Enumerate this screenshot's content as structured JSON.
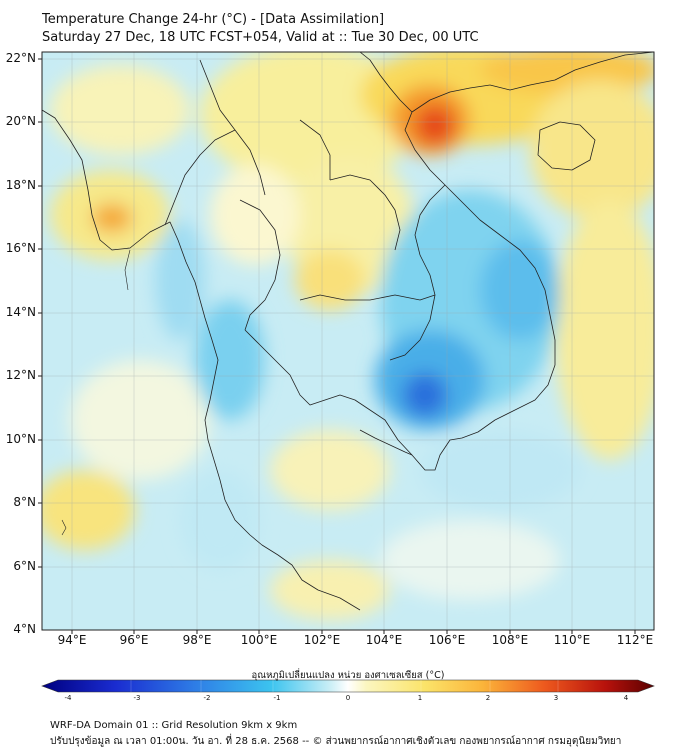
{
  "title": {
    "line1": "Temperature Change 24-hr (°C) - [Data Assimilation]",
    "line2": "Saturday 27 Dec, 18 UTC FCST+054, Valid at :: Tue 30 Dec, 00 UTC"
  },
  "map": {
    "lat_labels": [
      "22°N",
      "20°N",
      "18°N",
      "16°N",
      "14°N",
      "12°N",
      "10°N",
      "8°N",
      "6°N",
      "4°N"
    ],
    "lon_labels": [
      "94°E",
      "96°E",
      "98°E",
      "100°E",
      "102°E",
      "104°E",
      "106°E",
      "108°E",
      "110°E",
      "112°E"
    ],
    "lat_range": [
      4,
      22.2
    ],
    "lon_range": [
      93.1,
      112.9
    ],
    "grid": true
  },
  "colorbar": {
    "title": "อุณหภูมิเปลี่ยนแปลง หน่วย องศาเซลเซียส (°C)",
    "ticks": [
      "-4",
      "-3",
      "-2",
      "-1",
      "0",
      "1",
      "2",
      "3",
      "4"
    ],
    "range": [
      -4,
      4
    ],
    "colors": [
      "#000080",
      "#1a20c8",
      "#2e73e6",
      "#3cb9ee",
      "#a3e3f3",
      "#eef7f7",
      "#fbf4a6",
      "#fcd64e",
      "#f9942a",
      "#e63a16",
      "#a00f0a",
      "#5a0000"
    ]
  },
  "footer": {
    "line1": "WRF-DA Domain 01 :: Grid Resolution 9km x 9km",
    "line2": "ปรับปรุงข้อมูล ณ เวลา 01:00น. วัน อา. ที่ 28 ธ.ค. 2568 -- © ส่วนพยากรณ์อากาศเชิงตัวเลข กองพยากรณ์อากาศ กรมอุตุนิยมวิทยา"
  }
}
